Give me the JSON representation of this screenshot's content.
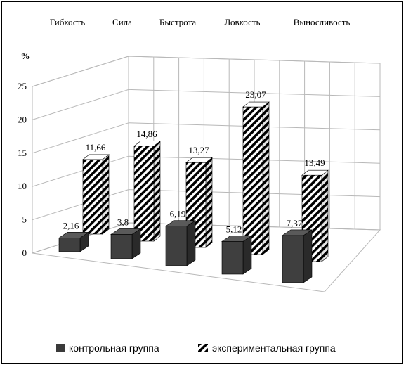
{
  "chart_data": {
    "type": "bar",
    "ylabel": "%",
    "ylim": [
      0,
      25
    ],
    "y_ticks": [
      "0",
      "5",
      "10",
      "15",
      "20",
      "25"
    ],
    "categories": [
      "Гибкость",
      "Сила",
      "Быстрота",
      "Ловкость",
      "Выносливость"
    ],
    "series": [
      {
        "name": "контрольная группа",
        "values": [
          2.16,
          3.8,
          6.19,
          5.12,
          7.37
        ],
        "labels": [
          "2,16",
          "3,8",
          "6,19",
          "5,12",
          "7,37"
        ],
        "color": "#3a3a3a"
      },
      {
        "name": "экспериментальная группа",
        "values": [
          11.66,
          14.86,
          13.27,
          23.07,
          13.49
        ],
        "labels": [
          "11,66",
          "14,86",
          "13,27",
          "23,07",
          "13,49"
        ],
        "color": "hatched"
      }
    ],
    "grid": true,
    "legend_position": "bottom",
    "view": "3d"
  }
}
